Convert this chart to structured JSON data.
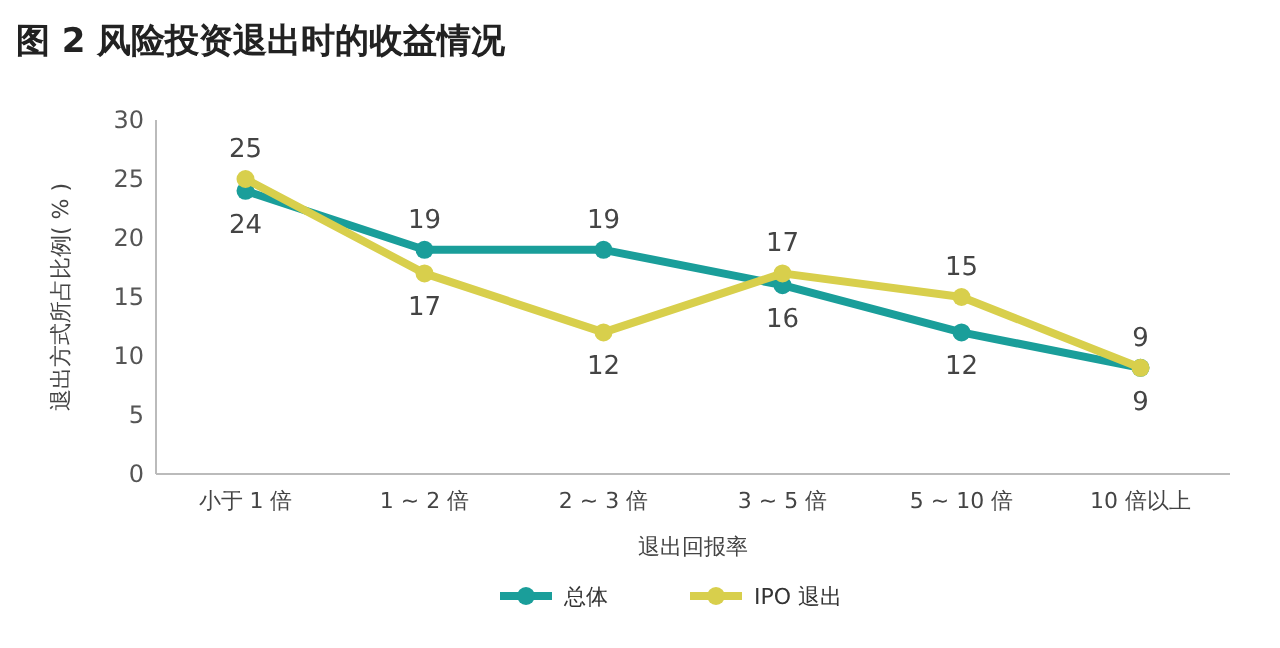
{
  "chart_data": {
    "type": "line",
    "title": "图 2  风险投资退出时的收益情况",
    "xlabel": "退出回报率",
    "ylabel": "退出方式所占比例( % )",
    "categories": [
      "小于 1 倍",
      "1 ~ 2 倍",
      "2 ~ 3 倍",
      "3 ~ 5 倍",
      "5 ~ 10 倍",
      "10 倍以上"
    ],
    "series": [
      {
        "name": "总体",
        "color": "#1a9e9a",
        "values": [
          24,
          19,
          19,
          16,
          12,
          9
        ]
      },
      {
        "name": "IPO 退出",
        "color": "#d8cf4c",
        "values": [
          25,
          17,
          12,
          17,
          15,
          9
        ]
      }
    ],
    "ylim": [
      0,
      30
    ],
    "yticks": [
      0,
      5,
      10,
      15,
      20,
      25,
      30
    ],
    "data_labels": true,
    "marker": "circle",
    "legend": "bottom",
    "grid": false
  }
}
